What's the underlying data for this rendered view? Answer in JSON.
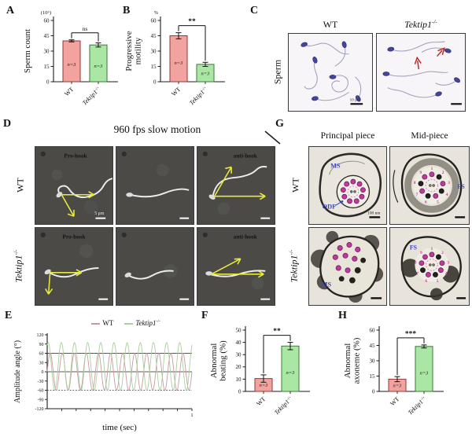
{
  "genotype": {
    "wt": "WT",
    "ko_base": "Tektip1",
    "ko_sup": "-/-"
  },
  "panels": {
    "a": "A",
    "b": "B",
    "c": "C",
    "d": "D",
    "e": "E",
    "f": "F",
    "g": "G",
    "h": "H"
  },
  "panel_c": {
    "row_label": "Sperm",
    "scale_bar": "10 μm"
  },
  "panel_d": {
    "title": "960 fps slow motion",
    "pro_label": "Pro-hook",
    "anti_label": "anti-hook",
    "scale_bar": "5 μm"
  },
  "panel_g": {
    "col1": "Principal piece",
    "col2": "Mid-piece",
    "ms": "MS",
    "odf": "ODF",
    "fs": "FS",
    "scale_bar": "100 nm",
    "doublet_numbers": [
      "1",
      "2",
      "3",
      "4",
      "5",
      "6",
      "7",
      "8",
      "9"
    ]
  },
  "colors": {
    "axis": "#1a1a1a",
    "wt_fill": "#f2a3a0",
    "wt_stroke": "#8f3a35",
    "ko_fill": "#abe7a4",
    "ko_stroke": "#3c7a38",
    "wt_line": "#c99ba0",
    "ko_line": "#a9cf9b",
    "blue_label": "#3946c0",
    "magenta": "#bf3a9d",
    "red_arrow": "#c42222",
    "yellow_arrow": "#e9e93c"
  },
  "chart_data": [
    {
      "id": "A",
      "type": "bar",
      "unit_label": "(10⁶)",
      "ylabel": [
        "Sperm count"
      ],
      "categories": [
        "WT",
        "Tektip1-/-"
      ],
      "values": [
        40,
        36
      ],
      "errors": [
        1,
        2
      ],
      "n_labels": [
        "n=3",
        "n=3"
      ],
      "significance": "ns",
      "yticks": [
        0,
        15,
        30,
        45,
        60
      ],
      "ylim": [
        0,
        60
      ]
    },
    {
      "id": "B",
      "type": "bar",
      "unit_label": "%",
      "ylabel": [
        "Progressive",
        "motility"
      ],
      "categories": [
        "WT",
        "Tektip1-/-"
      ],
      "values": [
        45,
        17
      ],
      "errors": [
        3,
        2
      ],
      "n_labels": [
        "n=3",
        "n=3"
      ],
      "significance": "**",
      "yticks": [
        0,
        15,
        30,
        45,
        60
      ],
      "ylim": [
        0,
        60
      ]
    },
    {
      "id": "E",
      "type": "line",
      "ylabel": "Amplitude angle (°)",
      "xlabel": "time (sec)",
      "ylim": [
        -120,
        120
      ],
      "yticks": [
        -120,
        -90,
        -60,
        -30,
        0,
        30,
        60,
        90,
        120
      ],
      "xlim": [
        0,
        1
      ],
      "x_end_label": "1",
      "ref_lines": [
        60,
        0
      ],
      "dotted_ref": -60,
      "legend_position": "top",
      "series": [
        {
          "name": "WT",
          "peak": 60,
          "trough": -60,
          "cycles": 12,
          "color_key": "wt_line"
        },
        {
          "name": "Tektip1-/-",
          "peak": 95,
          "trough": -60,
          "cycles": 11,
          "color_key": "ko_line"
        }
      ]
    },
    {
      "id": "F",
      "type": "bar",
      "unit_label": "",
      "ylabel": [
        "Abnormal",
        "beating (%)"
      ],
      "categories": [
        "WT",
        "Tektip1-/-"
      ],
      "values": [
        10.5,
        37
      ],
      "errors": [
        3,
        3
      ],
      "n_labels": [
        "n=3",
        "n=3"
      ],
      "significance": "**",
      "yticks": [
        0,
        10,
        20,
        30,
        40,
        50
      ],
      "ylim": [
        0,
        50
      ]
    },
    {
      "id": "H",
      "type": "bar",
      "unit_label": "",
      "ylabel": [
        "Abnormal",
        "axoneme (%)"
      ],
      "categories": [
        "WT",
        "Tektip1-/-"
      ],
      "values": [
        12,
        44
      ],
      "errors": [
        2.5,
        1.5
      ],
      "n_labels": [
        "n=3",
        "n=3"
      ],
      "significance": "***",
      "yticks": [
        0,
        15,
        30,
        45,
        60
      ],
      "ylim": [
        0,
        60
      ]
    }
  ]
}
